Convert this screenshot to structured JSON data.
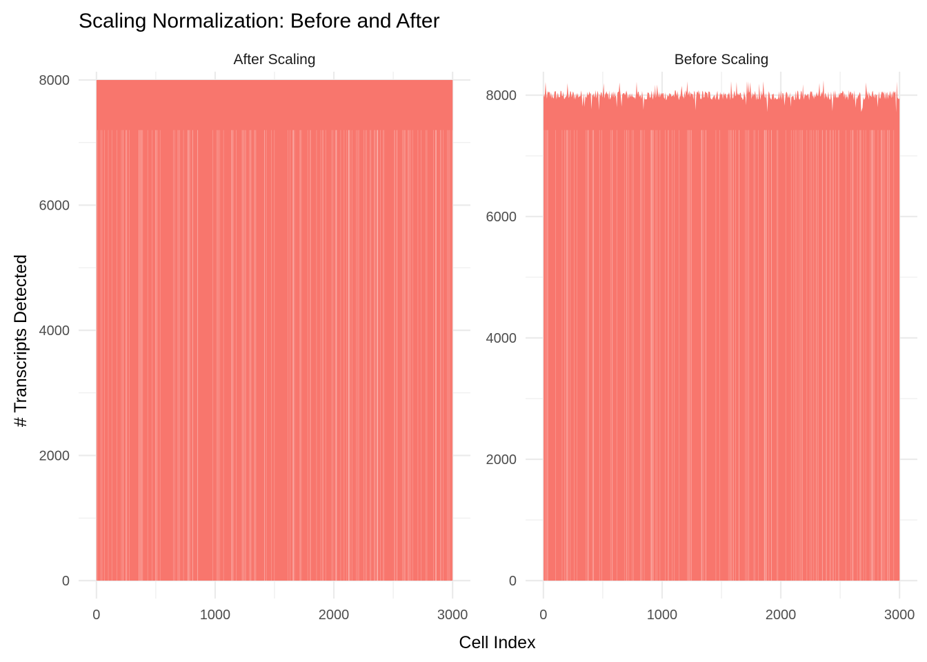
{
  "chart_data": {
    "type": "bar",
    "title": "Scaling Normalization: Before and After",
    "xlabel": "Cell Index",
    "ylabel": "# Transcripts Detected",
    "bar_color": "#F8766D",
    "grid": true,
    "background": "#FFFFFF",
    "facet_layout": "1 row, 2 columns, free y scales",
    "panels": [
      {
        "strip": "After Scaling",
        "x": {
          "range": [
            1,
            3000
          ],
          "limits": [
            -150,
            3150
          ],
          "ticks": [
            0,
            1000,
            2000,
            3000
          ]
        },
        "y": {
          "limits": [
            0,
            8000
          ],
          "ticks": [
            0,
            2000,
            4000,
            6000,
            8000
          ]
        },
        "n_cells": 3000,
        "value_summary": {
          "all_values": 8000
        }
      },
      {
        "strip": "Before Scaling",
        "x": {
          "range": [
            1,
            3000
          ],
          "limits": [
            -150,
            3150
          ],
          "ticks": [
            0,
            1000,
            2000,
            3000
          ]
        },
        "y": {
          "limits": [
            0,
            8250
          ],
          "ticks": [
            0,
            2000,
            4000,
            6000,
            8000
          ]
        },
        "n_cells": 3000,
        "value_summary": {
          "min": 7700,
          "typical": 8000,
          "max": 8250
        }
      }
    ]
  }
}
